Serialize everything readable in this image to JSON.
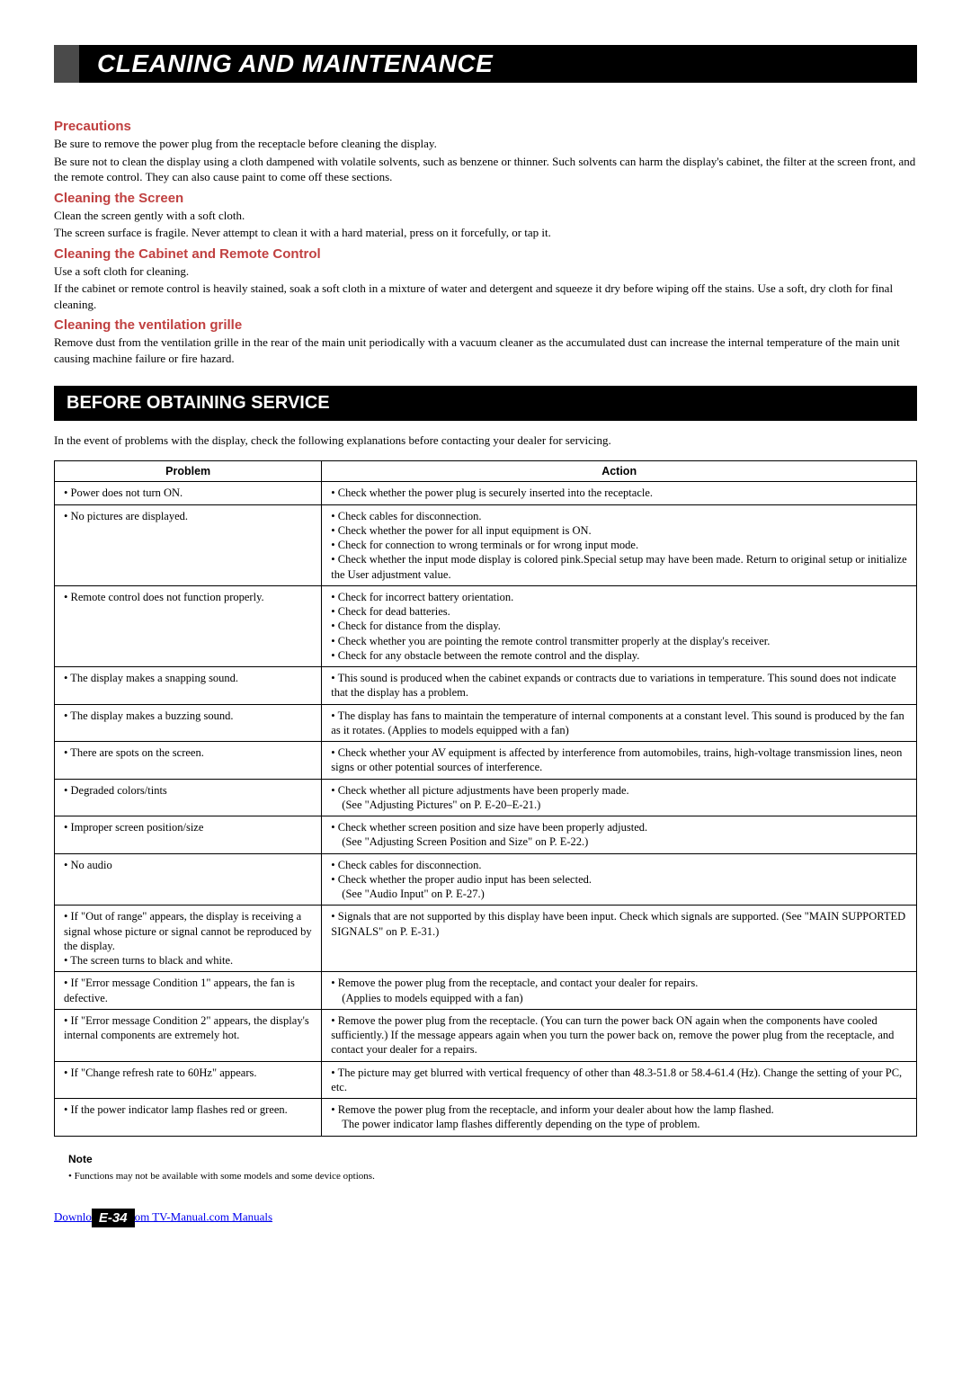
{
  "title": "CLEANING AND MAINTENANCE",
  "sections": {
    "precautions": {
      "heading": "Precautions",
      "line1": "Be sure to remove the power plug from the receptacle before cleaning the display.",
      "line2": "Be sure not to clean the display using a cloth dampened with volatile solvents, such as benzene or thinner.  Such solvents can harm the display's cabinet, the filter at the screen front, and the remote control.  They can also cause paint to come off these sections."
    },
    "screen": {
      "heading": "Cleaning the Screen",
      "line1": "Clean the screen gently with a soft cloth.",
      "line2": "The screen surface is fragile.  Never attempt to clean it with a hard material, press on it forcefully, or tap it."
    },
    "cabinet": {
      "heading": "Cleaning the Cabinet and Remote Control",
      "line1": "Use a soft cloth for cleaning.",
      "line2": "If the cabinet or remote control is heavily stained, soak a soft cloth in a mixture of water  and detergent and squeeze it dry before wiping off the stains.  Use a soft, dry cloth for final cleaning."
    },
    "ventilation": {
      "heading": "Cleaning the ventilation grille",
      "line1": "Remove dust from the ventilation grille in the rear of the main unit periodically with a vacuum cleaner as the accumulated dust can increase the internal temperature of the main unit causing machine failure or fire hazard."
    }
  },
  "subtitle": "BEFORE OBTAINING SERVICE",
  "lead": "In the event of problems with the display, check the following explanations before contacting your dealer for servicing.",
  "table": {
    "header_problem": "Problem",
    "header_action": "Action",
    "rows": [
      {
        "problem": [
          "Power does not turn ON."
        ],
        "action": [
          "Check whether the power plug is securely inserted into the receptacle."
        ]
      },
      {
        "problem": [
          "No pictures are displayed."
        ],
        "action": [
          "Check cables for disconnection.",
          "Check whether the power for all input equipment is ON.",
          "Check for connection to wrong terminals or for wrong input mode.",
          "Check whether the input mode display is colored pink.Special setup may have been made. Return to original setup or initialize the User adjustment value."
        ]
      },
      {
        "problem": [
          "Remote control does not function properly."
        ],
        "action": [
          "Check for incorrect battery orientation.",
          "Check for dead batteries.",
          "Check for distance from the display.",
          "Check whether you are pointing the remote control transmitter properly at the display's receiver.",
          "Check for any obstacle between the remote control and the display."
        ]
      },
      {
        "problem": [
          "The display makes a snapping sound."
        ],
        "action": [
          "This sound is produced when the cabinet expands or contracts due to variations in temperature.  This sound does not indicate that the display has a problem."
        ]
      },
      {
        "problem": [
          "The display makes a buzzing sound."
        ],
        "action": [
          "The display has fans to maintain the temperature of internal components at a constant level.  This sound is produced by the fan as it rotates. (Applies to models equipped with a fan)"
        ]
      },
      {
        "problem": [
          "There are spots on the screen."
        ],
        "action": [
          "Check whether your AV equipment is affected by interference from automobiles, trains, high-voltage transmission lines, neon signs or other potential sources of interference."
        ]
      },
      {
        "problem": [
          "Degraded colors/tints"
        ],
        "action": [
          "Check whether all picture adjustments have been properly made.",
          "_(See \"Adjusting Pictures\" on P. E-20–E-21.)"
        ]
      },
      {
        "problem": [
          "Improper screen position/size"
        ],
        "action": [
          "Check whether screen position and size have been properly adjusted.",
          "_(See \"Adjusting Screen Position and Size\" on P. E-22.)"
        ]
      },
      {
        "problem": [
          "No audio"
        ],
        "action": [
          "Check cables for disconnection.",
          "Check whether the proper audio input has been selected.",
          "_(See \"Audio Input\" on P. E-27.)"
        ]
      },
      {
        "problem": [
          "If \"Out of range\" appears, the display is receiving a signal whose picture or signal cannot be reproduced by the display.",
          "The screen turns to black and white."
        ],
        "action": [
          "Signals that are not supported by this display have been input. Check which signals are supported. (See \"MAIN SUPPORTED SIGNALS\" on P. E-31.)"
        ]
      },
      {
        "problem": [
          "If \"Error message Condition 1\" appears, the fan is defective."
        ],
        "action": [
          "Remove the power plug from the receptacle, and contact your dealer for repairs.",
          "_(Applies to models equipped with a fan)"
        ]
      },
      {
        "problem": [
          "If \"Error message Condition 2\" appears, the display's internal components are extremely hot."
        ],
        "action": [
          "Remove the power plug from the receptacle.  (You can turn the power back ON again when the components have cooled sufficiently.)  If the message appears again when you turn the power back on, remove the power plug from the receptacle, and contact your dealer for a repairs."
        ]
      },
      {
        "problem": [
          "If \"Change refresh rate to 60Hz\" appears."
        ],
        "action": [
          "The picture may get blurred with vertical frequency of other than 48.3-51.8 or 58.4-61.4 (Hz). Change the setting of your PC, etc."
        ]
      },
      {
        "problem": [
          "If the power indicator lamp flashes red or green."
        ],
        "action": [
          "Remove the power plug from the receptacle, and inform your dealer about how the lamp flashed.",
          "_The power indicator lamp flashes differently depending on the type of problem."
        ]
      }
    ]
  },
  "note": {
    "heading": "Note",
    "text": "•  Functions may not be available with some models and some device options."
  },
  "footer": {
    "link_before": "Downlo",
    "page_num": "E-34",
    "link_after": "om TV-Manual.com Manuals"
  }
}
